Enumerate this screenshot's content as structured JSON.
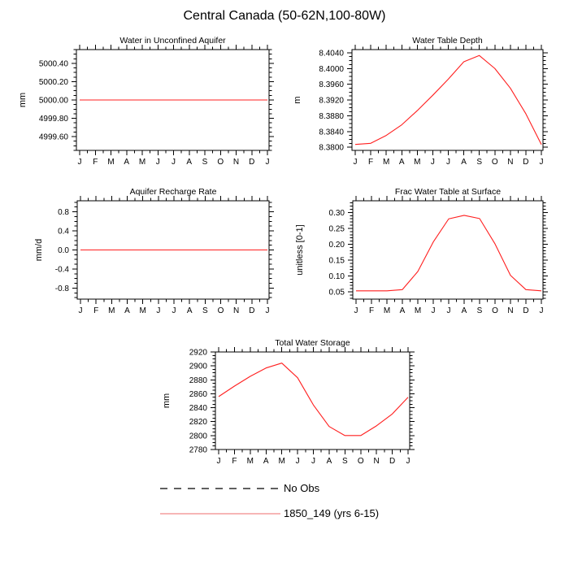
{
  "page_title": "Central Canada (50-62N,100-80W)",
  "months": [
    "J",
    "F",
    "M",
    "A",
    "M",
    "J",
    "J",
    "A",
    "S",
    "O",
    "N",
    "D",
    "J"
  ],
  "colors": {
    "series_line": "#ff1f1f",
    "axis": "#000000",
    "legend_obs_line": "#000000",
    "legend_case_line": "#f28b8b"
  },
  "legend": {
    "position": "below",
    "items": [
      {
        "label": "No Obs",
        "style": "dashed",
        "color": "#000000"
      },
      {
        "label": "1850_149 (yrs 6-15)",
        "style": "solid",
        "color": "#f28b8b"
      }
    ]
  },
  "chart_data": [
    {
      "id": "water-in-unconfined-aquifer",
      "type": "line",
      "title": "Water in Unconfined Aquifer",
      "ylabel": "mm",
      "categories": [
        "J",
        "F",
        "M",
        "A",
        "M",
        "J",
        "J",
        "A",
        "S",
        "O",
        "N",
        "D",
        "J"
      ],
      "values": [
        5000.0,
        5000.0,
        5000.0,
        5000.0,
        5000.0,
        5000.0,
        5000.0,
        5000.0,
        5000.0,
        5000.0,
        5000.0,
        5000.0,
        5000.0
      ],
      "ylim": [
        4999.45,
        5000.55
      ],
      "ytick_values": [
        4999.6,
        4999.8,
        5000.0,
        5000.2,
        5000.4
      ],
      "ytick_labels": [
        "4999.60",
        "4999.80",
        "5000.00",
        "5000.20",
        "5000.40"
      ],
      "yminor_step": 0.05,
      "grid": false
    },
    {
      "id": "water-table-depth",
      "type": "line",
      "title": "Water Table Depth",
      "ylabel": "m",
      "categories": [
        "J",
        "F",
        "M",
        "A",
        "M",
        "J",
        "J",
        "A",
        "S",
        "O",
        "N",
        "D",
        "J"
      ],
      "values": [
        8.3807,
        8.381,
        8.383,
        8.3857,
        8.3893,
        8.3932,
        8.3973,
        8.4017,
        8.4033,
        8.4,
        8.395,
        8.3885,
        8.3807
      ],
      "ylim": [
        8.3792,
        8.4048
      ],
      "ytick_values": [
        8.38,
        8.384,
        8.388,
        8.392,
        8.396,
        8.4,
        8.404
      ],
      "ytick_labels": [
        "8.3800",
        "8.3840",
        "8.3880",
        "8.3920",
        "8.3960",
        "8.4000",
        "8.4040"
      ],
      "yminor_step": 0.001,
      "grid": false
    },
    {
      "id": "aquifer-recharge-rate",
      "type": "line",
      "title": "Aquifer Recharge Rate",
      "ylabel": "mm/d",
      "categories": [
        "J",
        "F",
        "M",
        "A",
        "M",
        "J",
        "J",
        "A",
        "S",
        "O",
        "N",
        "D",
        "J"
      ],
      "values": [
        0.0,
        0.0,
        0.0,
        0.0,
        0.0,
        0.0,
        0.0,
        0.0,
        0.0,
        0.0,
        0.0,
        0.0,
        0.0
      ],
      "ylim": [
        -1.03,
        1.03
      ],
      "ytick_values": [
        -0.8,
        -0.4,
        0.0,
        0.4,
        0.8
      ],
      "ytick_labels": [
        "-0.8",
        "-0.4",
        "0.0",
        "0.4",
        "0.8"
      ],
      "yminor_step": 0.1,
      "grid": false
    },
    {
      "id": "frac-water-table-at-surface",
      "type": "line",
      "title": "Frac Water Table at Surface",
      "ylabel": "unitless [0-1]",
      "categories": [
        "J",
        "F",
        "M",
        "A",
        "M",
        "J",
        "J",
        "A",
        "S",
        "O",
        "N",
        "D",
        "J"
      ],
      "values": [
        0.053,
        0.053,
        0.053,
        0.057,
        0.114,
        0.207,
        0.28,
        0.291,
        0.281,
        0.201,
        0.102,
        0.057,
        0.053
      ],
      "ylim": [
        0.027,
        0.337
      ],
      "ytick_values": [
        0.05,
        0.1,
        0.15,
        0.2,
        0.25,
        0.3
      ],
      "ytick_labels": [
        "0.05",
        "0.10",
        "0.15",
        "0.20",
        "0.25",
        "0.30"
      ],
      "yminor_step": 0.01,
      "grid": false
    },
    {
      "id": "total-water-storage",
      "type": "line",
      "title": "Total Water Storage",
      "ylabel": "mm",
      "categories": [
        "J",
        "F",
        "M",
        "A",
        "M",
        "J",
        "J",
        "A",
        "S",
        "O",
        "N",
        "D",
        "J"
      ],
      "values": [
        2856,
        2871,
        2885,
        2897,
        2904,
        2883,
        2844,
        2813,
        2800,
        2800,
        2814,
        2831,
        2855
      ],
      "ylim": [
        2780,
        2920
      ],
      "ytick_values": [
        2780,
        2800,
        2820,
        2840,
        2860,
        2880,
        2900,
        2920
      ],
      "ytick_labels": [
        "2780",
        "2800",
        "2820",
        "2840",
        "2860",
        "2880",
        "2900",
        "2920"
      ],
      "yminor_step": 5,
      "grid": false
    }
  ]
}
